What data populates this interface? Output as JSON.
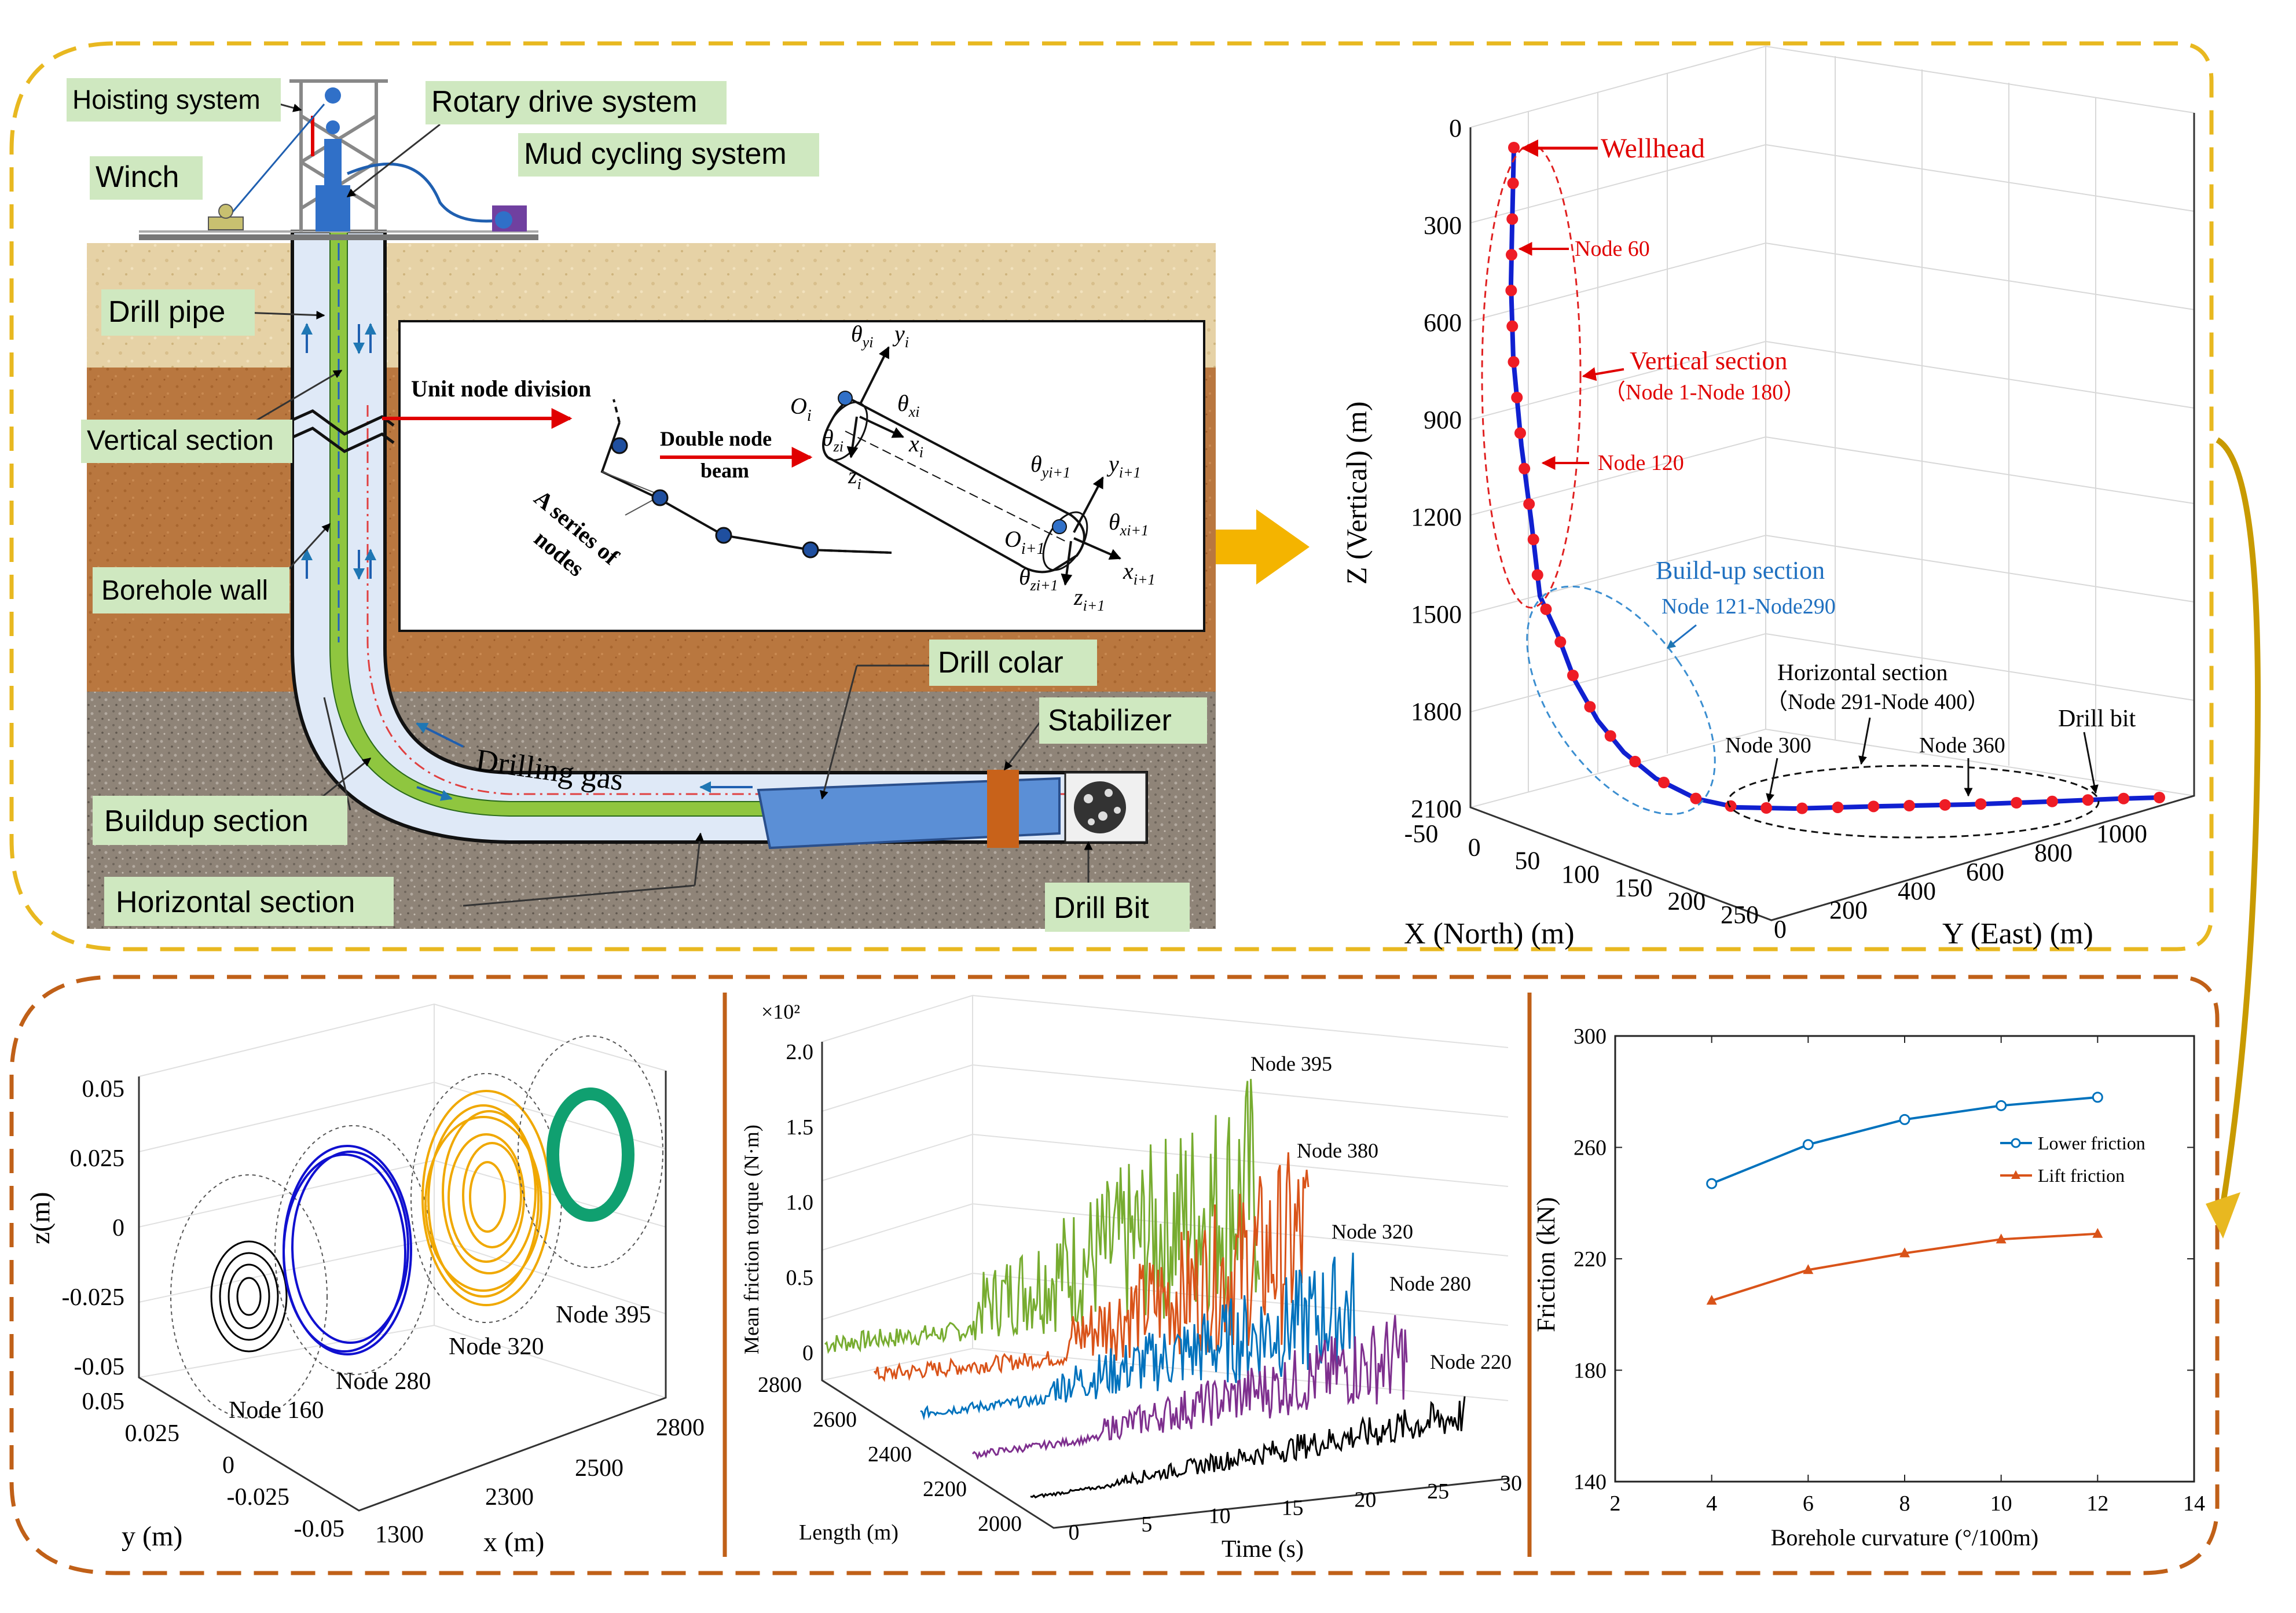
{
  "top_left": {
    "labels": {
      "hoisting": "Hoisting system",
      "rotary": "Rotary drive system",
      "mud": "Mud cycling system",
      "winch": "Winch",
      "drill_pipe": "Drill pipe",
      "vertical": "Vertical section",
      "borehole_wall": "Borehole wall",
      "buildup": "Buildup section",
      "horizontal": "Horizontal section",
      "drill_colar": "Drill colar",
      "stabilizer": "Stabilizer",
      "drill_bit": "Drill Bit",
      "drilling_gas": "Drilling gas"
    },
    "inset": {
      "unit_node_division": "Unit node division",
      "double_node_beam_1": "Double node",
      "double_node_beam_2": "beam",
      "series_1": "A series of",
      "series_2": "nodes",
      "Oi": "O",
      "Oi_sub": "i",
      "Oi1": "O",
      "Oi1_sub": "i+1",
      "theta_yi": "θ",
      "theta_yi_sub": "yi",
      "theta_xi": "θ",
      "theta_xi_sub": "xi",
      "theta_zi": "θ",
      "theta_zi_sub": "zi",
      "yi": "y",
      "yi_sub": "i",
      "xi": "x",
      "xi_sub": "i",
      "zi": "z",
      "zi_sub": "i",
      "theta_yi1": "θ",
      "theta_yi1_sub": "yi+1",
      "theta_xi1": "θ",
      "theta_xi1_sub": "xi+1",
      "theta_zi1": "θ",
      "theta_zi1_sub": "zi+1",
      "yi1": "y",
      "yi1_sub": "i+1",
      "xi1": "x",
      "xi1_sub": "i+1",
      "zi1": "z",
      "zi1_sub": "i+1"
    },
    "colors": {
      "green_tag": "#cfe8c0",
      "pipe": "#3a6fc4",
      "mud": "#8fc63f",
      "red_arrow": "#e00000"
    }
  },
  "top_right": {
    "zlabel": "Z (Vertical)  (m)",
    "xlabel": "X (North)  (m)",
    "ylabel": "Y (East)  (m)",
    "z_ticks": [
      "0",
      "300",
      "600",
      "900",
      "1200",
      "1500",
      "1800",
      "2100"
    ],
    "x_ticks": [
      "-50",
      "0",
      "50",
      "100",
      "150",
      "200",
      "250"
    ],
    "y_ticks": [
      "0",
      "200",
      "400",
      "600",
      "800",
      "1000"
    ],
    "annotations": {
      "wellhead": "Wellhead",
      "node60": "Node 60",
      "vertical_section": "Vertical section",
      "vertical_range": "（Node 1-Node 180）",
      "node120": "Node 120",
      "buildup_section": "Build-up section",
      "buildup_range": "Node 121-Node290",
      "horizontal_section": "Horizontal section",
      "horizontal_range": "（Node 291-Node 400）",
      "node300": "Node 300",
      "node360": "Node 360",
      "drill_bit": "Drill bit"
    }
  },
  "bottom_left": {
    "zlabel": "z(m)",
    "ylabel": "y (m)",
    "xlabel": "x (m)",
    "z_ticks": [
      "0.05",
      "0.025",
      "0",
      "-0.025",
      "-0.05"
    ],
    "y_ticks": [
      "0.05",
      "0.025",
      "0",
      "-0.025",
      "-0.05"
    ],
    "x_ticks": [
      "1300",
      "2300",
      "2500",
      "2800"
    ],
    "nodes": [
      "Node 160",
      "Node 280",
      "Node 320",
      "Node 395"
    ]
  },
  "bottom_mid": {
    "zlabel": "Mean friction torque (N·m)",
    "exponent": "×10²",
    "z_ticks": [
      "2.0",
      "1.5",
      "1.0",
      "0.5",
      "0"
    ],
    "length_label": "Length (m)",
    "length_ticks": [
      "2800",
      "2600",
      "2400",
      "2200",
      "2000"
    ],
    "time_label": "Time (s)",
    "time_ticks": [
      "0",
      "5",
      "10",
      "15",
      "20",
      "25",
      "30"
    ],
    "series": [
      {
        "name": "Node 395",
        "color": "#77ac30"
      },
      {
        "name": "Node 380",
        "color": "#d95319"
      },
      {
        "name": "Node 320",
        "color": "#0072bd"
      },
      {
        "name": "Node 280",
        "color": "#7e2f8e"
      },
      {
        "name": "Node 220",
        "color": "#000000"
      }
    ]
  },
  "chart_data": {
    "type": "line",
    "x": [
      4,
      6,
      8,
      10,
      12
    ],
    "xlabel": "Borehole curvature (°/100m)",
    "ylabel": "Friction (kN)",
    "xlim": [
      2,
      14
    ],
    "ylim": [
      140,
      300
    ],
    "x_ticks": [
      "2",
      "4",
      "6",
      "8",
      "10",
      "12",
      "14"
    ],
    "y_ticks": [
      "140",
      "180",
      "220",
      "260",
      "300"
    ],
    "legend_position": "right",
    "series": [
      {
        "name": "Lower friction",
        "values": [
          247,
          261,
          270,
          275,
          278
        ],
        "color": "#0072bd",
        "marker": "circle"
      },
      {
        "name": "Lift friction",
        "values": [
          205,
          216,
          222,
          227,
          229
        ],
        "color": "#d95319",
        "marker": "triangle"
      }
    ]
  }
}
